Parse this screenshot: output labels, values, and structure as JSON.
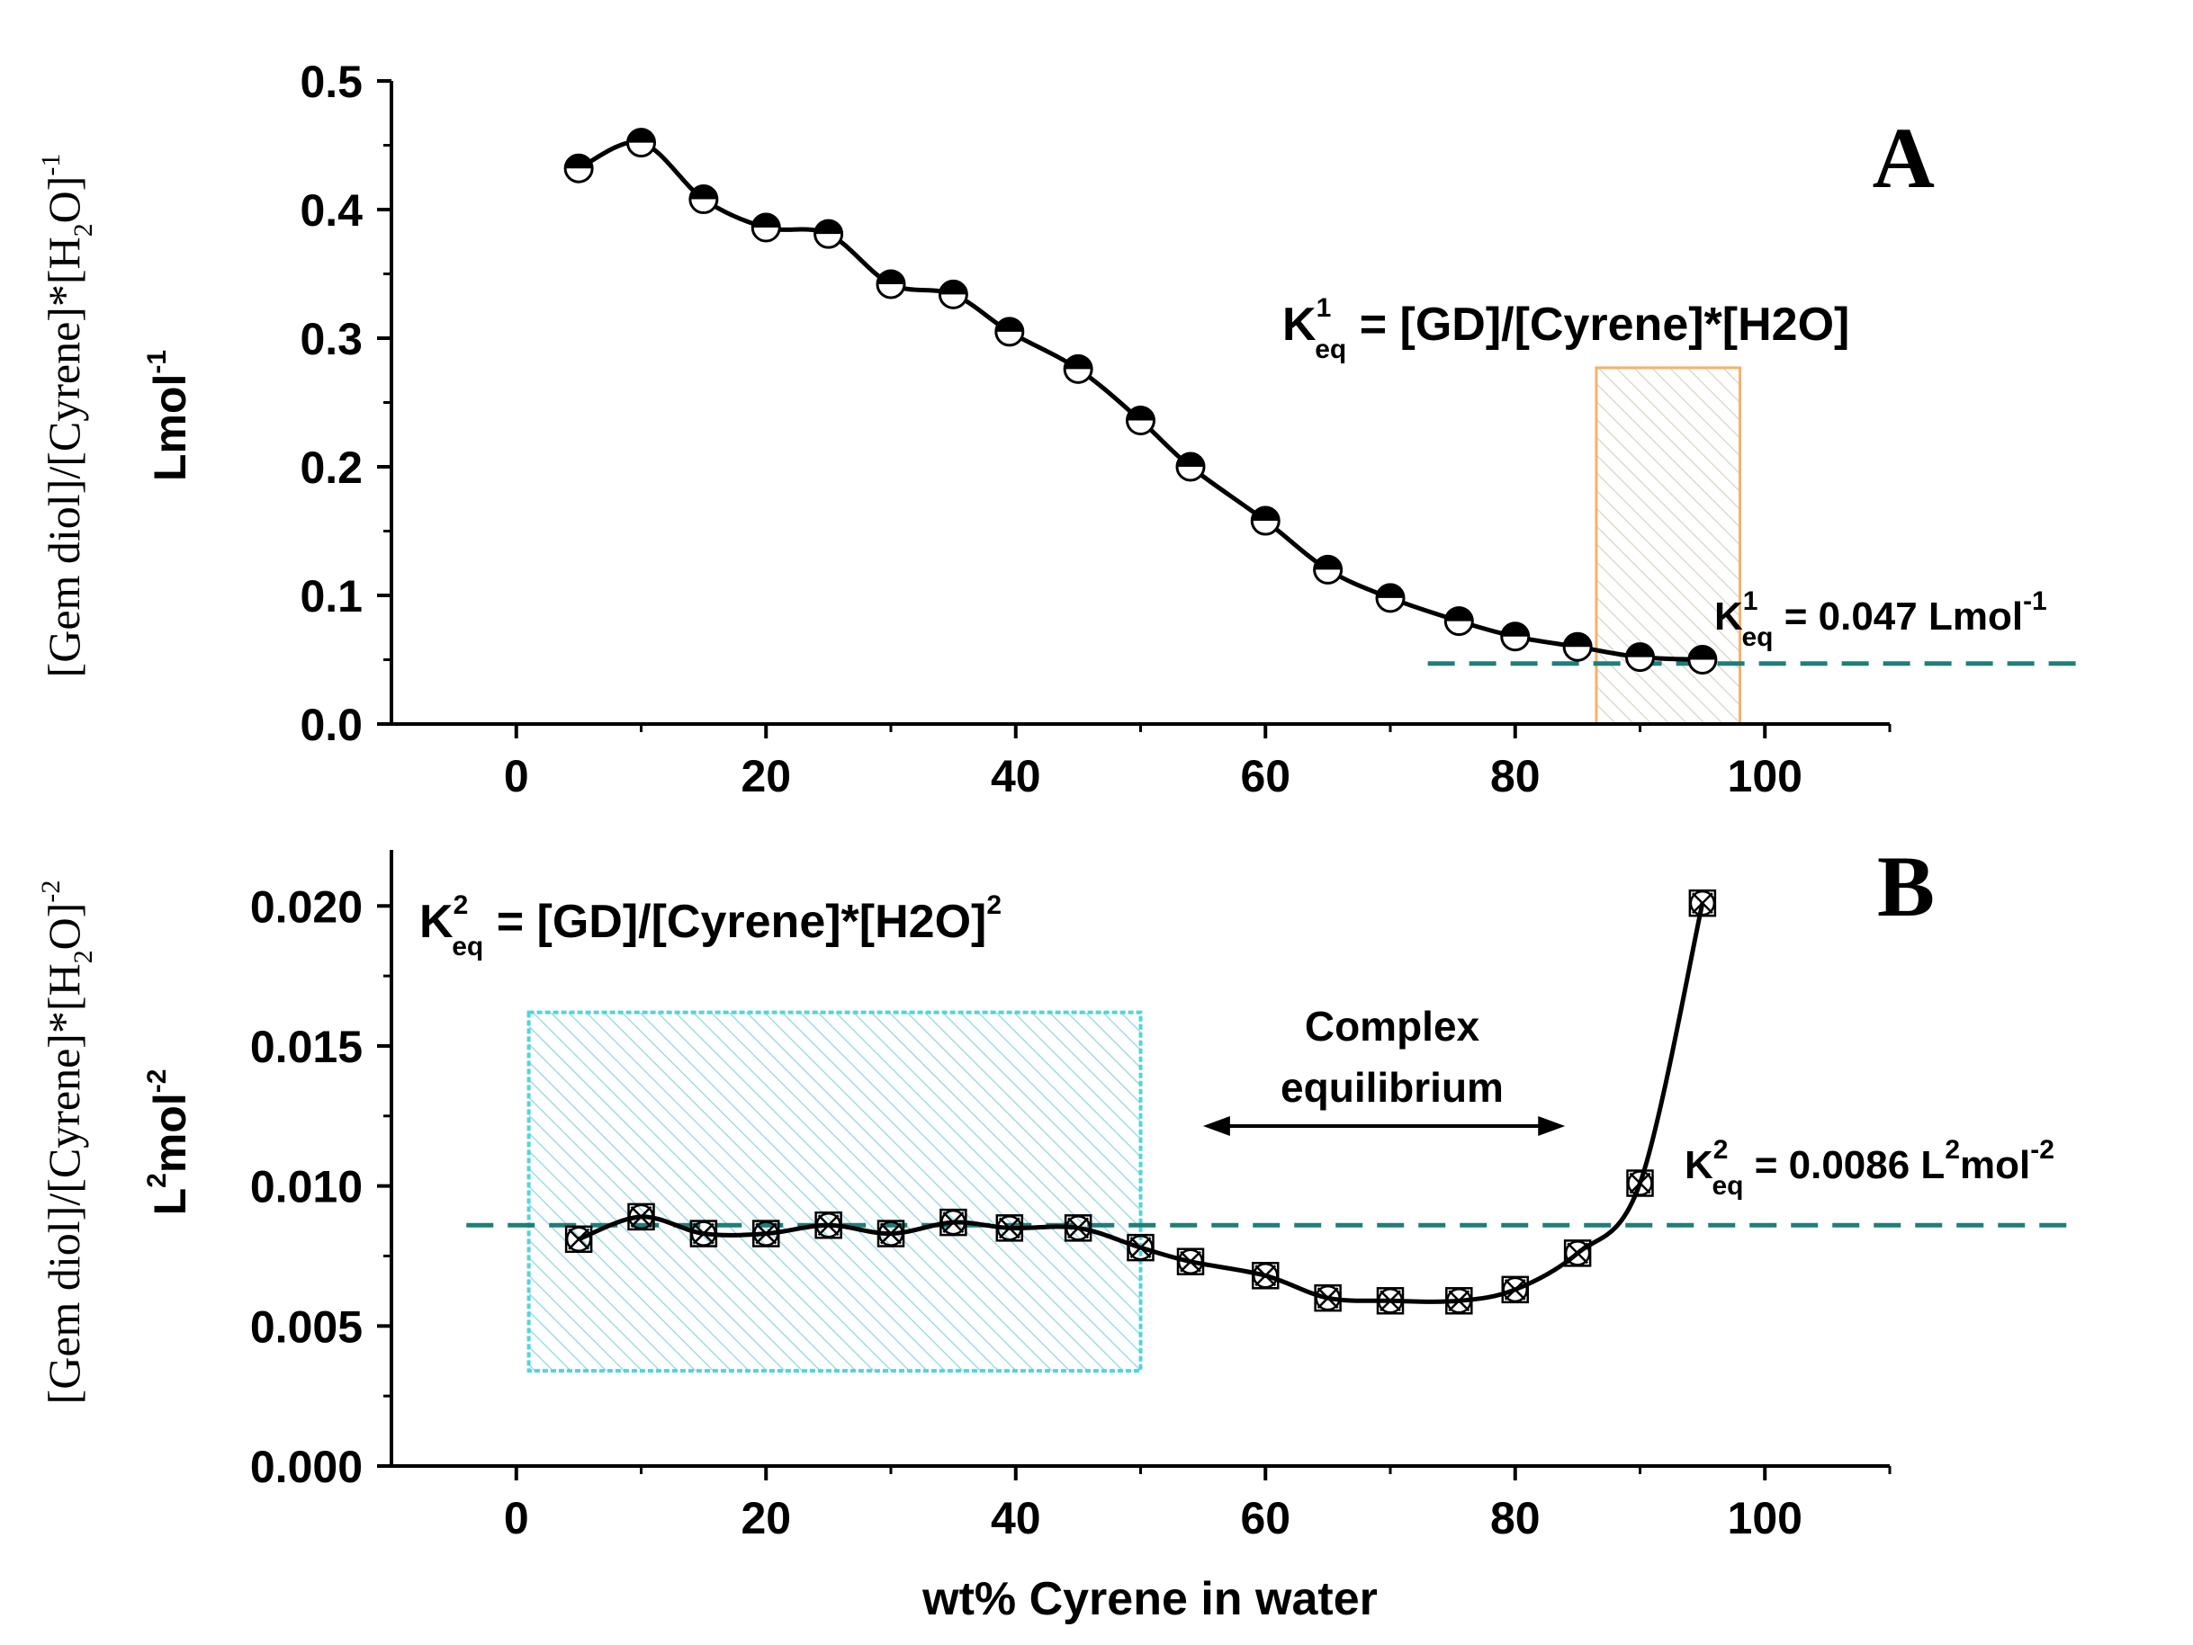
{
  "chart_data": [
    {
      "panel": "A",
      "type": "line",
      "xlim": [
        -10,
        110
      ],
      "ylim": [
        0.0,
        0.5
      ],
      "x_ticks": [
        "0",
        "20",
        "40",
        "60",
        "80",
        "100"
      ],
      "y_ticks": [
        "0.0",
        "0.1",
        "0.2",
        "0.3",
        "0.4",
        "0.5"
      ],
      "ylabel_line1_main": "[Gem diol]/[Cyrene]*[H",
      "ylabel_line1_sub": "2",
      "ylabel_line1_tail": "O]",
      "ylabel_line1_sup": "-1",
      "ylabel_line2": "Lmol",
      "ylabel_line2_sup": "-1",
      "series": [
        {
          "name": "K1eq",
          "marker": "half-filled circle",
          "x": [
            5,
            10,
            15,
            20,
            25,
            30,
            35,
            39.5,
            45,
            50,
            54,
            60,
            65,
            70,
            75.5,
            80,
            85,
            90,
            95
          ],
          "y": [
            0.432,
            0.452,
            0.408,
            0.386,
            0.381,
            0.342,
            0.334,
            0.305,
            0.276,
            0.236,
            0.2,
            0.158,
            0.12,
            0.098,
            0.08,
            0.068,
            0.06,
            0.052,
            0.05
          ]
        }
      ],
      "reference_line": {
        "y": 0.047,
        "x_from": 73,
        "x_to": 125
      },
      "highlight_box": {
        "x_from": 86.5,
        "x_to": 98,
        "y_from": 0.0,
        "y_to": 0.277
      },
      "equation": {
        "prefix": "K",
        "sup": "1",
        "sub": "eq",
        "rest": " = [GD]/[Cyrene]*[H2O]"
      },
      "value_label": {
        "prefix": "K",
        "sup": "1",
        "sub": "eq",
        "rest": " = 0.047 Lmol",
        "unit_sup": "-1"
      },
      "panel_label": "A"
    },
    {
      "panel": "B",
      "type": "line",
      "xlim": [
        -10,
        110
      ],
      "ylim": [
        0.0,
        0.022
      ],
      "x_ticks": [
        "0",
        "20",
        "40",
        "60",
        "80",
        "100"
      ],
      "y_ticks": [
        "0.000",
        "0.005",
        "0.010",
        "0.015",
        "0.020"
      ],
      "xlabel": "wt% Cyrene in water",
      "ylabel_line1_main": "[Gem diol]/[Cyrene]*[H",
      "ylabel_line1_sub": "2",
      "ylabel_line1_tail": "O]",
      "ylabel_line1_sup": "-2",
      "ylabel_line2_L": "L",
      "ylabel_line2_sup1": "2",
      "ylabel_line2_mol": "mol",
      "ylabel_line2_sup2": "-2",
      "series": [
        {
          "name": "K2eq",
          "marker": "crossed square and circle",
          "x": [
            5,
            10,
            15,
            20,
            25,
            30,
            35,
            39.5,
            45,
            50,
            54,
            60,
            65,
            70,
            75.5,
            80,
            85,
            90,
            95
          ],
          "y": [
            0.0081,
            0.0089,
            0.0083,
            0.0083,
            0.0086,
            0.0083,
            0.0087,
            0.0085,
            0.0085,
            0.0078,
            0.0073,
            0.0068,
            0.006,
            0.0059,
            0.0059,
            0.0063,
            0.0076,
            0.0101,
            0.0201
          ]
        }
      ],
      "reference_line": {
        "y": 0.0086,
        "x_from": -4,
        "x_to": 125
      },
      "highlight_box": {
        "x_from": 1,
        "x_to": 50,
        "y_from": 0.0034,
        "y_to": 0.0162
      },
      "equation": {
        "prefix": "K",
        "sup": "2",
        "sub": "eq",
        "rest": " = [GD]/[Cyrene]*[H2O]",
        "tail_sup": "2"
      },
      "value_label": {
        "prefix": "K",
        "sup": "2",
        "sub": "eq",
        "rest_a": " = 0.0086 L",
        "unit_sup1": "2",
        "rest_b": "mol",
        "unit_sup2": "-2"
      },
      "annotation": {
        "line1": "Complex",
        "line2": "equilibrium",
        "arrow_x_from": 55,
        "arrow_x_to": 84
      },
      "panel_label": "B"
    }
  ],
  "colors": {
    "axis": "#000000",
    "curve": "#000000",
    "reference_line": "#1d7f7a",
    "box_A": "#f5b26b",
    "box_B": "#4fd4e0"
  }
}
